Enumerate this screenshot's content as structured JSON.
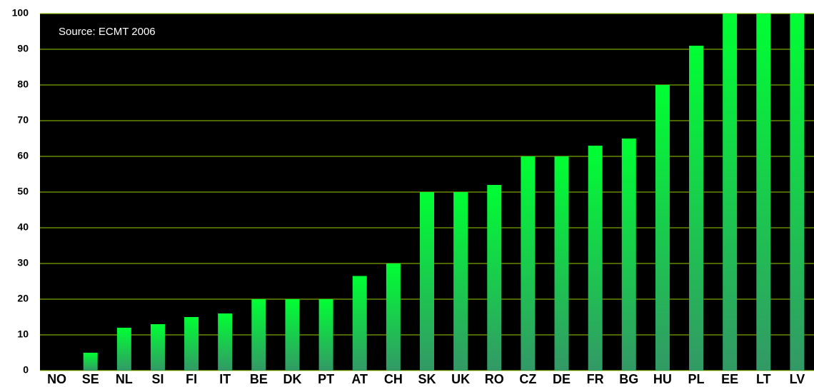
{
  "chart_data": {
    "type": "bar",
    "annotation": "Source: ECMT 2006",
    "categories": [
      "NO",
      "SE",
      "NL",
      "SI",
      "FI",
      "IT",
      "BE",
      "DK",
      "PT",
      "AT",
      "CH",
      "SK",
      "UK",
      "RO",
      "CZ",
      "DE",
      "FR",
      "BG",
      "HU",
      "PL",
      "EE",
      "LT",
      "LV"
    ],
    "values": [
      0,
      5,
      12,
      13,
      15,
      16,
      20,
      20,
      20,
      26.5,
      30,
      50,
      50,
      52,
      60,
      60,
      63,
      65,
      80,
      91,
      100,
      100,
      100
    ],
    "color_top": "#00ff33",
    "color_bottom": "#339966",
    "ylim": [
      0,
      100
    ],
    "yticks": [
      0,
      10,
      20,
      30,
      40,
      50,
      60,
      70,
      80,
      90,
      100
    ],
    "grid": true,
    "grid_color": "#99cc00"
  }
}
